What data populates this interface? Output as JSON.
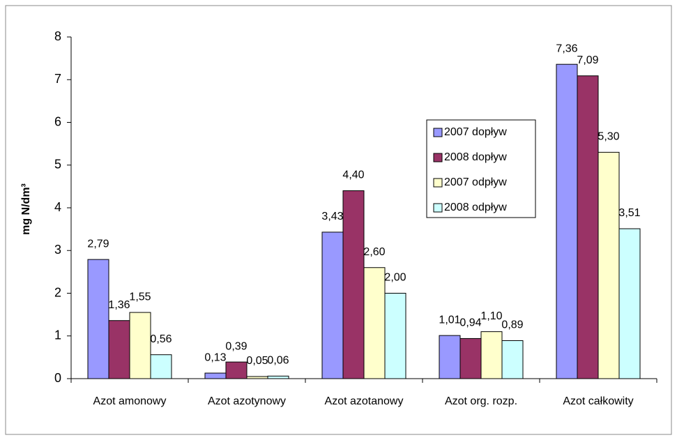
{
  "chart_data": {
    "type": "bar",
    "y_label": "mg N/dm³",
    "categories": [
      "Azot amonowy",
      "Azot azotynowy",
      "Azot azotanowy",
      "Azot org. rozp.",
      "Azot całkowity"
    ],
    "series": [
      {
        "name": "2007 dopływ",
        "color": "#9999ff",
        "values": [
          2.79,
          0.13,
          3.43,
          1.01,
          7.36
        ],
        "value_labels": [
          "2,79",
          "0,13",
          "3,43",
          "1,01",
          "7,36"
        ]
      },
      {
        "name": "2008 dopływ",
        "color": "#993366",
        "values": [
          1.36,
          0.39,
          4.4,
          0.94,
          7.09
        ],
        "value_labels": [
          "1,36",
          "0,39",
          "4,40",
          "0,94",
          "7,09"
        ]
      },
      {
        "name": "2007 odpływ",
        "color": "#ffffcc",
        "values": [
          1.55,
          0.05,
          2.6,
          1.1,
          5.3
        ],
        "value_labels": [
          "1,55",
          "0,05",
          "2,60",
          "1,10",
          "5,30"
        ]
      },
      {
        "name": "2008 odpływ",
        "color": "#ccffff",
        "values": [
          0.56,
          0.06,
          2.0,
          0.89,
          3.51
        ],
        "value_labels": [
          "0,56",
          "0,06",
          "2,00",
          "0,89",
          "3,51"
        ]
      }
    ],
    "ylim": [
      0,
      8
    ],
    "yticks": [
      0,
      1,
      2,
      3,
      4,
      5,
      6,
      7,
      8
    ]
  }
}
